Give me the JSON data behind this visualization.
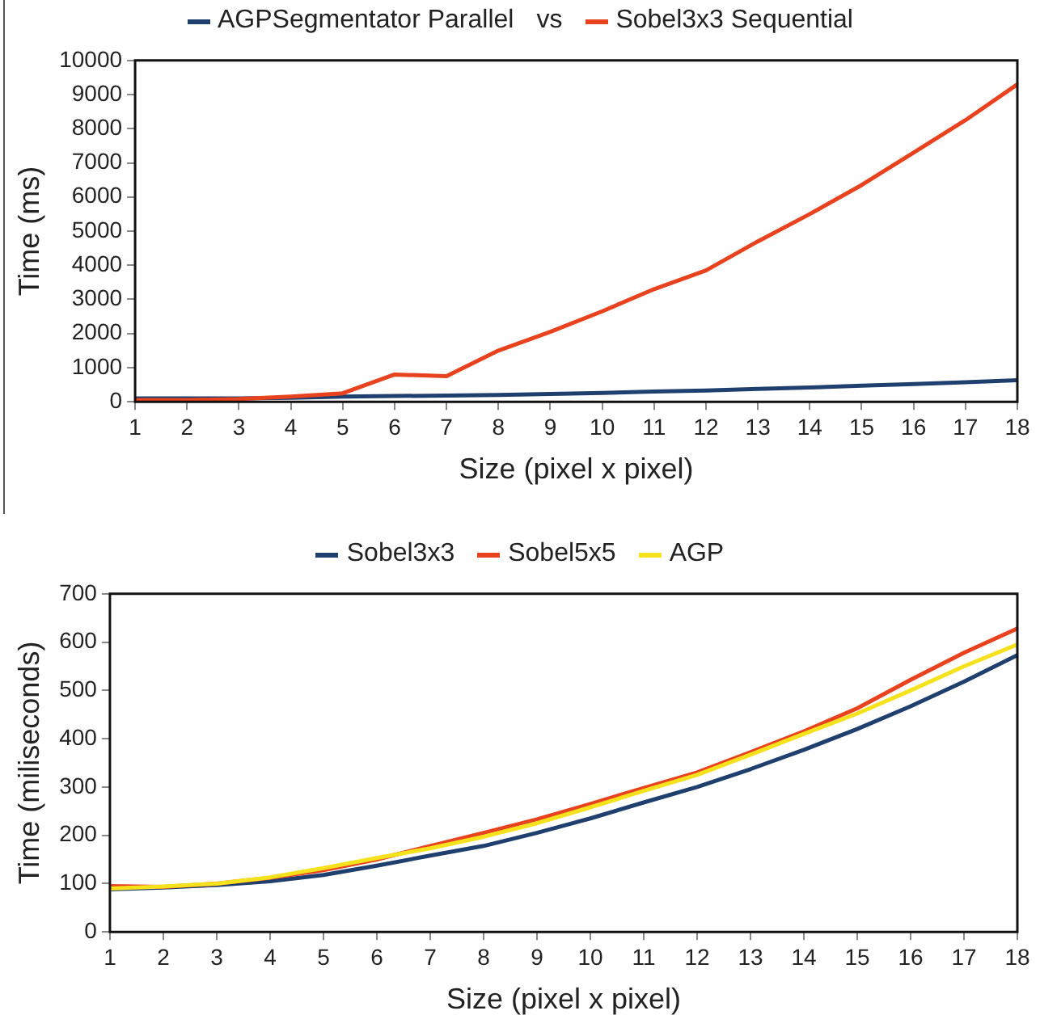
{
  "chart_data": [
    {
      "type": "line",
      "xlabel": "Size (pixel x pixel)",
      "ylabel": "Time (ms)",
      "annotations": [
        "vs"
      ],
      "legend": "top",
      "grid": false,
      "marker": "none",
      "x": [
        1,
        2,
        3,
        4,
        5,
        6,
        7,
        8,
        9,
        10,
        11,
        12,
        13,
        14,
        15,
        16,
        17,
        18
      ],
      "xlim": [
        1,
        18
      ],
      "xticks": [
        1,
        2,
        3,
        4,
        5,
        6,
        7,
        8,
        9,
        10,
        11,
        12,
        13,
        14,
        15,
        16,
        17,
        18
      ],
      "ylim": [
        0,
        10000
      ],
      "yticks": [
        0,
        1000,
        2000,
        3000,
        4000,
        5000,
        6000,
        7000,
        8000,
        9000,
        10000
      ],
      "series": [
        {
          "name": "AGPSegmentator Parallel",
          "color": "#1f3f6e",
          "values": [
            100,
            100,
            100,
            120,
            150,
            170,
            180,
            200,
            230,
            260,
            300,
            330,
            380,
            420,
            470,
            520,
            570,
            630
          ]
        },
        {
          "name": "Sobel3x3 Sequential",
          "color": "#e8421e",
          "values": [
            50,
            50,
            80,
            150,
            250,
            800,
            750,
            1500,
            2050,
            2650,
            3300,
            3850,
            4700,
            5500,
            6350,
            7300,
            8250,
            9300
          ]
        }
      ]
    },
    {
      "type": "line",
      "xlabel": "Size (pixel x pixel)",
      "ylabel": "Time (miliseconds)",
      "legend": "top",
      "grid": false,
      "marker": "none",
      "x": [
        1,
        2,
        3,
        4,
        5,
        6,
        7,
        8,
        9,
        10,
        11,
        12,
        13,
        14,
        15,
        16,
        17,
        18
      ],
      "xlim": [
        1,
        18
      ],
      "xticks": [
        1,
        2,
        3,
        4,
        5,
        6,
        7,
        8,
        9,
        10,
        11,
        12,
        13,
        14,
        15,
        16,
        17,
        18
      ],
      "ylim": [
        0,
        700
      ],
      "yticks": [
        0,
        100,
        200,
        300,
        400,
        500,
        600,
        700
      ],
      "series": [
        {
          "name": "Sobel3x3",
          "color": "#1f3f6e",
          "values": [
            88,
            92,
            97,
            105,
            118,
            137,
            158,
            178,
            205,
            235,
            268,
            300,
            337,
            377,
            420,
            467,
            518,
            573
          ]
        },
        {
          "name": "Sobel5x5",
          "color": "#e8421e",
          "values": [
            95,
            93,
            100,
            112,
            128,
            150,
            178,
            205,
            233,
            265,
            298,
            330,
            372,
            415,
            463,
            522,
            578,
            628
          ]
        },
        {
          "name": "AGP",
          "color": "#f5e21c",
          "values": [
            90,
            94,
            100,
            113,
            132,
            153,
            173,
            197,
            225,
            258,
            292,
            325,
            367,
            410,
            452,
            500,
            550,
            595
          ]
        }
      ]
    }
  ]
}
